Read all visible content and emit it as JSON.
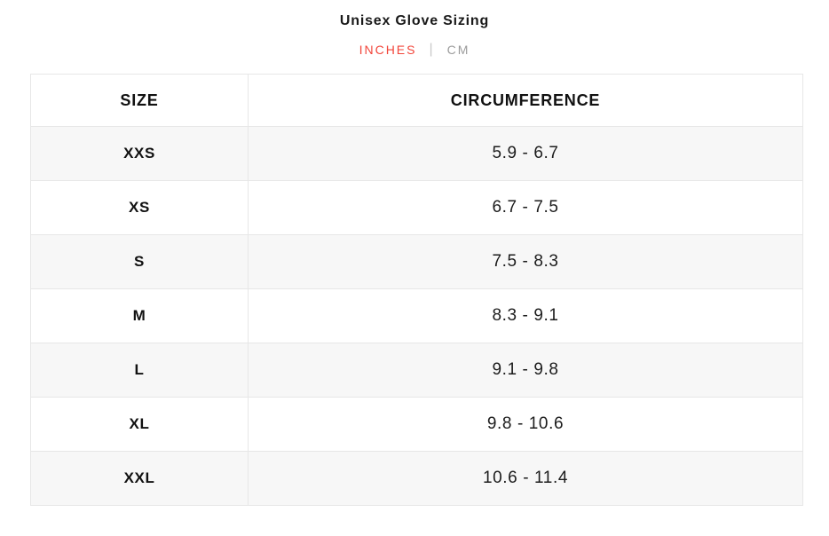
{
  "title": "Unisex Glove Sizing",
  "unit_toggle": {
    "inches_label": "INCHES",
    "cm_label": "CM",
    "separator": "|",
    "active_unit": "INCHES",
    "active_color": "#f2453a",
    "inactive_color": "#9b9b9b"
  },
  "table": {
    "headers": {
      "size": "SIZE",
      "circumference": "CIRCUMFERENCE"
    },
    "rows": [
      {
        "size": "XXS",
        "circumference": "5.9 - 6.7"
      },
      {
        "size": "XS",
        "circumference": "6.7 - 7.5"
      },
      {
        "size": "S",
        "circumference": "7.5 - 8.3"
      },
      {
        "size": "M",
        "circumference": "8.3 - 9.1"
      },
      {
        "size": "L",
        "circumference": "9.1 - 9.8"
      },
      {
        "size": "XL",
        "circumference": "9.8 - 10.6"
      },
      {
        "size": "XXL",
        "circumference": "10.6 - 11.4"
      }
    ]
  }
}
